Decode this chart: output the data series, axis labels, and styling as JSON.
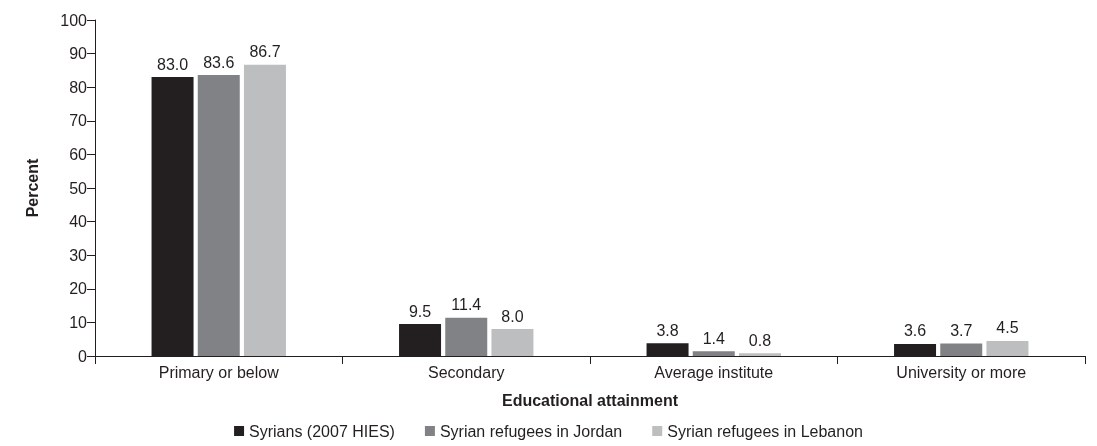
{
  "chart_data": {
    "type": "bar",
    "xlabel": "Educational attainment",
    "ylabel": "Percent",
    "categories": [
      "Primary or below",
      "Secondary",
      "Average institute",
      "University or more"
    ],
    "series": [
      {
        "name": "Syrians (2007 HIES)",
        "color": "#231f20",
        "values": [
          83.0,
          9.5,
          3.8,
          3.6
        ],
        "value_labels": [
          "83.0",
          "9.5",
          "3.8",
          "3.6"
        ]
      },
      {
        "name": "Syrian refugees in Jordan",
        "color": "#808285",
        "values": [
          83.6,
          11.4,
          1.4,
          3.7
        ],
        "value_labels": [
          "83.6",
          "11.4",
          "1.4",
          "3.7"
        ]
      },
      {
        "name": "Syrian refugees in Lebanon",
        "color": "#bcbec0",
        "values": [
          86.7,
          8.0,
          0.8,
          4.5
        ],
        "value_labels": [
          "86.7",
          "8.0",
          "0.8",
          "4.5"
        ]
      }
    ],
    "ylim": [
      0,
      100
    ],
    "yticks": [
      0,
      10,
      20,
      30,
      40,
      50,
      60,
      70,
      80,
      90,
      100
    ],
    "grid": false,
    "legend": "bottom"
  }
}
